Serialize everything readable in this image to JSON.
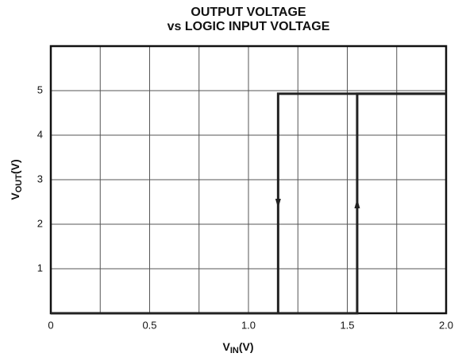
{
  "chart_data": {
    "type": "line",
    "title": [
      "OUTPUT VOLTAGE",
      "vs LOGIC INPUT VOLTAGE"
    ],
    "x_label": {
      "main": "V",
      "sub": "IN",
      "unit": "(V)"
    },
    "y_label": {
      "main": "V",
      "sub": "OUT",
      "unit": "(V)"
    },
    "xlim": [
      0,
      2.0
    ],
    "xticks": [
      0,
      0.5,
      {
        "value": 1.0,
        "label": "1.0"
      },
      1.5,
      {
        "value": 2.0,
        "label": "2.0"
      }
    ],
    "xminor_ticks": [
      0.25,
      0.75,
      1.25,
      1.75
    ],
    "ylim": [
      0,
      6
    ],
    "yticks": [
      1,
      2,
      3,
      4,
      5
    ],
    "grid": true,
    "series": [
      {
        "color": "#222222",
        "direction": "up",
        "x": [
          0,
          1.55,
          1.55,
          2.0
        ],
        "values": [
          0,
          0,
          4.93,
          4.93
        ]
      },
      {
        "color": "#222222",
        "direction": "down",
        "x": [
          2.0,
          1.15,
          1.15,
          0
        ],
        "values": [
          4.93,
          4.93,
          0,
          0
        ]
      }
    ]
  }
}
